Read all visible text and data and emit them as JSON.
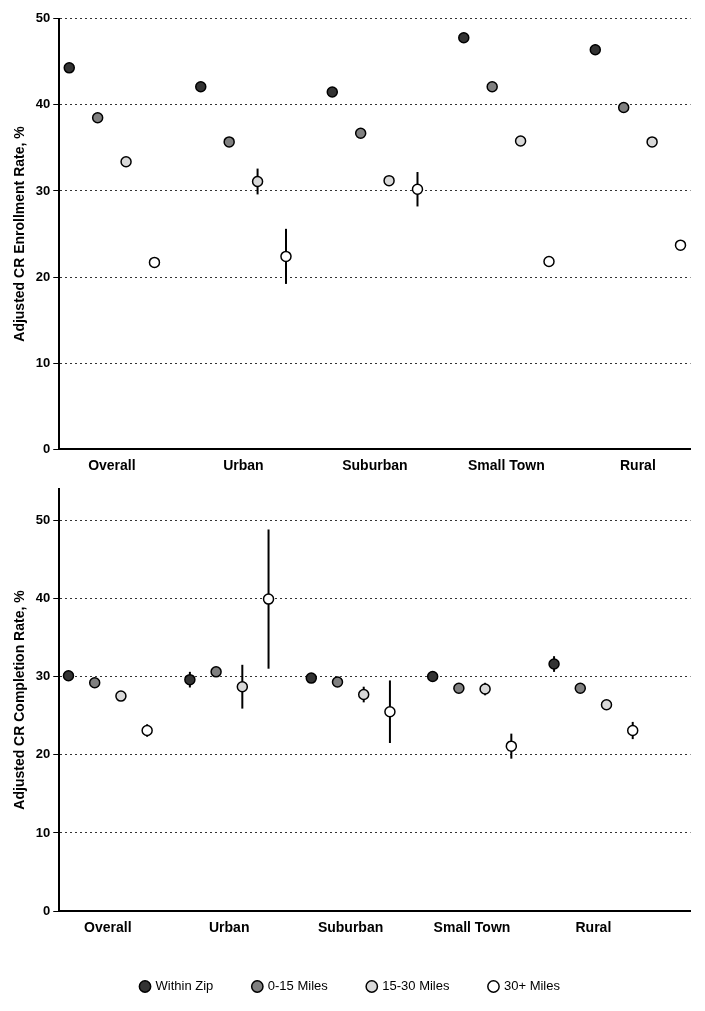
{
  "chart_data": [
    {
      "type": "scatter",
      "ylabel": "Adjusted CR Enrollment Rate, %",
      "categories": [
        "Overall",
        "Urban",
        "Suburban",
        "Small Town",
        "Rural"
      ],
      "ylim": [
        0,
        50
      ],
      "yticks": [
        0,
        10,
        20,
        30,
        40,
        50
      ],
      "grid": "y",
      "legend": false,
      "marker": "circle",
      "series": [
        {
          "color": "#333333",
          "values": [
            44.3,
            42.1,
            41.5,
            47.8,
            46.4
          ],
          "errors": [
            null,
            0.3,
            null,
            null,
            0.6
          ]
        },
        {
          "color": "#808080",
          "values": [
            38.5,
            35.7,
            36.7,
            42.1,
            39.7
          ]
        },
        {
          "color": "#d9d9d9",
          "values": [
            33.4,
            31.1,
            31.2,
            35.8,
            35.7
          ],
          "errors": [
            null,
            1.5,
            0.3,
            null,
            null
          ]
        },
        {
          "color": "#ffffff",
          "values": [
            21.7,
            22.4,
            30.2,
            21.8,
            23.7
          ],
          "errors": [
            null,
            3.2,
            2.0,
            0.3,
            null
          ]
        }
      ]
    },
    {
      "type": "scatter",
      "ylabel": "Adjusted CR Completion Rate, %",
      "categories": [
        "Overall",
        "Urban",
        "Suburban",
        "Small Town",
        "Rural"
      ],
      "ylim": [
        0,
        54
      ],
      "yticks": [
        0,
        10,
        20,
        30,
        40,
        50
      ],
      "grid": "y",
      "legend": "bottom",
      "marker": "circle",
      "series": [
        {
          "name": "Within Zip",
          "color": "#333333",
          "values": [
            30.1,
            29.6,
            29.8,
            30.0,
            31.6
          ],
          "errors": [
            null,
            1.0,
            null,
            null,
            1.0
          ]
        },
        {
          "name": "0-15 Miles",
          "color": "#808080",
          "values": [
            29.2,
            30.6,
            29.3,
            28.5,
            28.5
          ],
          "errors": [
            null,
            null,
            null,
            0.5,
            0.5
          ]
        },
        {
          "name": "15-30 Miles",
          "color": "#d9d9d9",
          "values": [
            27.5,
            28.7,
            27.7,
            28.4,
            26.4
          ],
          "errors": [
            null,
            2.8,
            1.0,
            0.8,
            null
          ]
        },
        {
          "name": "30+ Miles",
          "color": "#ffffff",
          "values": [
            23.1,
            39.9,
            25.5,
            21.1,
            23.1
          ],
          "errors": [
            0.8,
            8.9,
            4.0,
            1.6,
            1.1
          ]
        }
      ]
    }
  ]
}
